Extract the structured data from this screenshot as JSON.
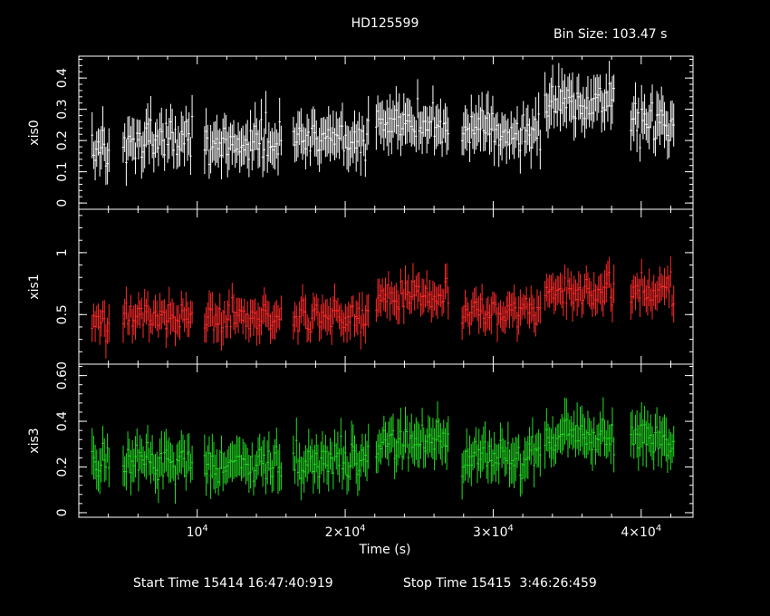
{
  "header": {
    "title": "HD125599",
    "bin_size": "Bin Size: 103.47 s"
  },
  "footer": {
    "start_time": "Start Time 15414 16:47:40:919",
    "stop_time": "Stop Time 15415  3:46:26:459"
  },
  "chart_data": {
    "type": "scatter",
    "title": "HD125599",
    "xlabel": "Time (s)",
    "xlim": [
      2000,
      43500
    ],
    "x_ticks": [
      {
        "value": 10000,
        "mantissa": "10",
        "exponent": "4"
      },
      {
        "value": 20000,
        "mantissa": "2×10",
        "exponent": "4"
      },
      {
        "value": 30000,
        "mantissa": "3×10",
        "exponent": "4"
      },
      {
        "value": 40000,
        "mantissa": "4×10",
        "exponent": "4"
      }
    ],
    "segments": [
      [
        2900,
        4100
      ],
      [
        5000,
        9700
      ],
      [
        10500,
        15700
      ],
      [
        16500,
        21600
      ],
      [
        22100,
        27000
      ],
      [
        27900,
        33200
      ],
      [
        33500,
        38200
      ],
      [
        39300,
        42300
      ]
    ],
    "seed": 125599,
    "panels": [
      {
        "ylabel": "xis0",
        "color": "#ffffff",
        "ylim": [
          -0.02,
          0.47
        ],
        "yticks": [
          0,
          0.1,
          0.2,
          0.3,
          0.4
        ],
        "ytick_labels": [
          "0",
          "0.1",
          "0.2",
          "0.3",
          "0.4"
        ],
        "levels": [
          0.17,
          0.21,
          0.2,
          0.21,
          0.25,
          0.23,
          0.32,
          0.26
        ],
        "noise": 0.045,
        "err": 0.06
      },
      {
        "ylabel": "xis1",
        "color": "#ff2a2a",
        "ylim": [
          0.1,
          1.35
        ],
        "yticks": [
          0.5,
          1
        ],
        "ytick_labels": [
          "0.5",
          "1"
        ],
        "levels": [
          0.45,
          0.48,
          0.47,
          0.48,
          0.65,
          0.52,
          0.68,
          0.68
        ],
        "noise": 0.09,
        "err": 0.12
      },
      {
        "ylabel": "xis3",
        "color": "#22dd22",
        "ylim": [
          -0.02,
          0.65
        ],
        "yticks": [
          0,
          0.2,
          0.4,
          0.6
        ],
        "ytick_labels": [
          "0",
          "0.2",
          "0.4",
          "0.60"
        ],
        "levels": [
          0.22,
          0.23,
          0.21,
          0.23,
          0.3,
          0.24,
          0.33,
          0.33
        ],
        "noise": 0.06,
        "err": 0.08
      }
    ]
  }
}
